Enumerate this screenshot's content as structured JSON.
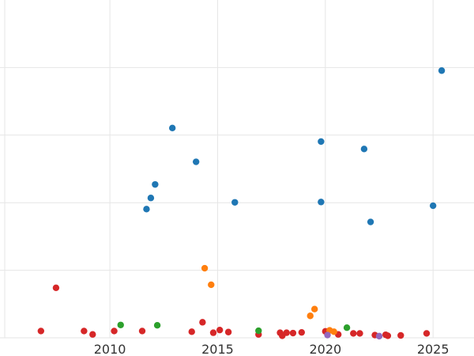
{
  "chart_data": {
    "type": "scatter",
    "title": "",
    "xlabel": "",
    "ylabel": "",
    "xlim": [
      2004.9,
      2026.9
    ],
    "ylim": [
      0,
      100
    ],
    "grid": true,
    "x_ticks": [
      2010,
      2015,
      2020,
      2025
    ],
    "x_tick_labels": [
      "2010",
      "2015",
      "2020",
      "2025"
    ],
    "y_gridlines": [
      0,
      20,
      40,
      60,
      80
    ],
    "series": [
      {
        "color": "#1f77b4",
        "points": [
          [
            2011.7,
            38.1
          ],
          [
            2011.9,
            41.4
          ],
          [
            2012.1,
            45.4
          ],
          [
            2012.9,
            62.1
          ],
          [
            2014.0,
            52.1
          ],
          [
            2015.8,
            40.1
          ],
          [
            2019.8,
            58.1
          ],
          [
            2019.8,
            40.2
          ],
          [
            2021.8,
            55.9
          ],
          [
            2022.1,
            34.3
          ],
          [
            2025.0,
            39.1
          ],
          [
            2025.4,
            79.1
          ]
        ]
      },
      {
        "color": "#d62728",
        "points": [
          [
            2006.8,
            2.0
          ],
          [
            2007.5,
            14.8
          ],
          [
            2008.8,
            2.0
          ],
          [
            2009.2,
            1.0
          ],
          [
            2010.2,
            2.0
          ],
          [
            2011.5,
            2.0
          ],
          [
            2013.8,
            1.8
          ],
          [
            2014.3,
            4.6
          ],
          [
            2014.8,
            1.5
          ],
          [
            2015.1,
            2.3
          ],
          [
            2015.5,
            1.7
          ],
          [
            2016.9,
            1.0
          ],
          [
            2017.9,
            1.5
          ],
          [
            2018.2,
            1.5
          ],
          [
            2018.5,
            1.4
          ],
          [
            2018.9,
            1.6
          ],
          [
            2020.0,
            1.9
          ],
          [
            2020.6,
            1.0
          ],
          [
            2021.3,
            1.3
          ],
          [
            2021.6,
            1.3
          ],
          [
            2022.3,
            0.8
          ],
          [
            2022.8,
            0.9
          ],
          [
            2022.9,
            0.6
          ],
          [
            2023.5,
            0.7
          ],
          [
            2024.7,
            1.3
          ],
          [
            2018.0,
            0.6
          ]
        ]
      },
      {
        "color": "#ff7f0e",
        "points": [
          [
            2014.4,
            20.6
          ],
          [
            2014.7,
            15.7
          ],
          [
            2019.3,
            6.5
          ],
          [
            2019.5,
            8.5
          ],
          [
            2020.2,
            2.2
          ],
          [
            2020.4,
            1.8
          ]
        ]
      },
      {
        "color": "#2ca02c",
        "points": [
          [
            2010.5,
            3.8
          ],
          [
            2012.2,
            3.7
          ],
          [
            2016.9,
            2.1
          ],
          [
            2021.0,
            3.0
          ]
        ]
      },
      {
        "color": "#9467bd",
        "points": [
          [
            2020.1,
            0.8
          ],
          [
            2022.5,
            0.5
          ]
        ]
      }
    ]
  }
}
